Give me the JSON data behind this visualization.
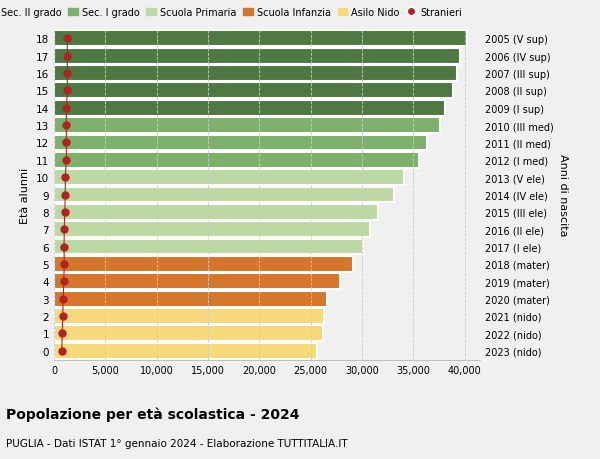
{
  "ages": [
    18,
    17,
    16,
    15,
    14,
    13,
    12,
    11,
    10,
    9,
    8,
    7,
    6,
    5,
    4,
    3,
    2,
    1,
    0
  ],
  "right_labels": [
    "2005 (V sup)",
    "2006 (IV sup)",
    "2007 (III sup)",
    "2008 (II sup)",
    "2009 (I sup)",
    "2010 (III med)",
    "2011 (II med)",
    "2012 (I med)",
    "2013 (V ele)",
    "2014 (IV ele)",
    "2015 (III ele)",
    "2016 (II ele)",
    "2017 (I ele)",
    "2018 (mater)",
    "2019 (mater)",
    "2020 (mater)",
    "2021 (nido)",
    "2022 (nido)",
    "2023 (nido)"
  ],
  "bar_values": [
    40200,
    39600,
    39300,
    38900,
    38100,
    37600,
    36300,
    35600,
    34100,
    33100,
    31600,
    30800,
    30100,
    29100,
    27900,
    26600,
    26300,
    26200,
    25600
  ],
  "stranieri_values": [
    1300,
    1300,
    1300,
    1300,
    1200,
    1200,
    1200,
    1200,
    1100,
    1100,
    1050,
    1000,
    980,
    1000,
    950,
    900,
    850,
    800,
    750
  ],
  "bar_colors": [
    "#4f7942",
    "#4f7942",
    "#4f7942",
    "#4f7942",
    "#4f7942",
    "#7db06a",
    "#7db06a",
    "#7db06a",
    "#bcd9a4",
    "#bcd9a4",
    "#bcd9a4",
    "#bcd9a4",
    "#bcd9a4",
    "#d4762b",
    "#d4762b",
    "#d4762b",
    "#f5d97a",
    "#f5d97a",
    "#f5d97a"
  ],
  "legend_labels": [
    "Sec. II grado",
    "Sec. I grado",
    "Scuola Primaria",
    "Scuola Infanzia",
    "Asilo Nido",
    "Stranieri"
  ],
  "legend_colors": [
    "#4f7942",
    "#7db06a",
    "#bcd9a4",
    "#d4762b",
    "#f5d97a",
    "#b22222"
  ],
  "ylabel_left": "Età alunni",
  "ylabel_right": "Anni di nascita",
  "title": "Popolazione per età scolastica - 2024",
  "subtitle": "PUGLIA - Dati ISTAT 1° gennaio 2024 - Elaborazione TUTTITALIA.IT",
  "xlim": [
    0,
    41500
  ],
  "background_color": "#f0f0f0",
  "stranieri_color": "#b22222",
  "grid_color": "#cccccc",
  "xticks": [
    0,
    5000,
    10000,
    15000,
    20000,
    25000,
    30000,
    35000,
    40000
  ],
  "xtick_labels": [
    "0",
    "5,000",
    "10,000",
    "15,000",
    "20,000",
    "25,000",
    "30,000",
    "35,000",
    "40,000"
  ]
}
